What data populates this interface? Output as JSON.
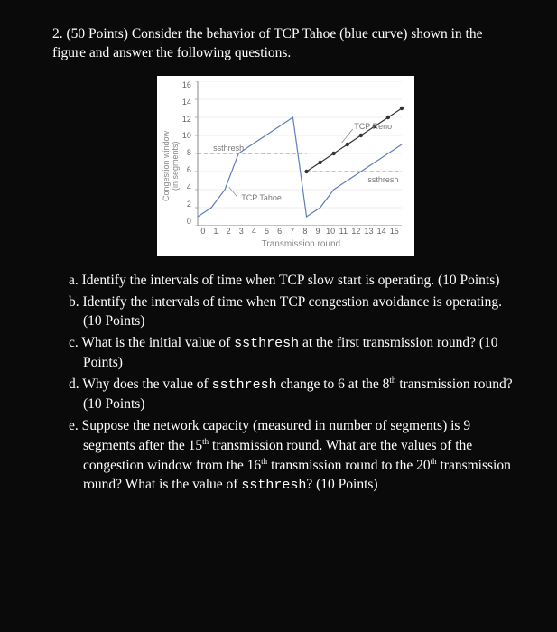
{
  "question": {
    "number": "2.",
    "points": "(50 Points)",
    "intro": "Consider the behavior of TCP Tahoe (blue curve) shown in the figure and answer the following questions."
  },
  "chart": {
    "type": "line",
    "background_color": "#ffffff",
    "grid_color": "#dddddd",
    "text_color": "#777777",
    "xlabel": "Transmission round",
    "ylabel_line1": "Congestion window",
    "ylabel_line2": "(in segments)",
    "yticks": [
      "16",
      "14",
      "12",
      "10",
      "8",
      "6",
      "4",
      "2",
      "0"
    ],
    "xticks": [
      "0",
      "1",
      "2",
      "3",
      "4",
      "5",
      "6",
      "7",
      "8",
      "9",
      "10",
      "11",
      "12",
      "13",
      "14",
      "15"
    ],
    "ylim": [
      0,
      16
    ],
    "xlim": [
      0,
      15
    ],
    "tahoe": {
      "label": "TCP Tahoe",
      "color": "#5b7fb8",
      "points_x": [
        0,
        1,
        2,
        3,
        4,
        5,
        6,
        7,
        8,
        9,
        10,
        11,
        12,
        13,
        14,
        15
      ],
      "points_y": [
        1,
        2,
        4,
        8,
        9,
        10,
        11,
        12,
        1,
        2,
        4,
        5,
        6,
        7,
        8,
        9
      ],
      "line_width": 1.2,
      "marker": "none"
    },
    "reno": {
      "label": "TCP Reno",
      "color": "#333333",
      "points_x": [
        8,
        9,
        10,
        11,
        12,
        13,
        14,
        15
      ],
      "points_y": [
        6,
        7,
        8,
        9,
        10,
        11,
        12,
        13
      ],
      "line_width": 1.2,
      "marker": "circle",
      "marker_size": 2.2
    },
    "ssthresh1": {
      "label": "ssthresh",
      "y": 8,
      "x_from": 0,
      "x_to": 8,
      "color": "#888888",
      "dash": "4,3"
    },
    "ssthresh2": {
      "label": "ssthresh",
      "y": 6,
      "x_from": 8,
      "x_to": 15,
      "color": "#888888",
      "dash": "4,3"
    },
    "label_fontsize": 9,
    "tick_fontsize": 9
  },
  "parts": {
    "a": {
      "letter": "a.",
      "text": "Identify the intervals of time when TCP slow start is operating. (10 Points)"
    },
    "b": {
      "letter": "b.",
      "text": "Identify the intervals of time when TCP congestion avoidance is operating. (10 Points)"
    },
    "c": {
      "letter": "c.",
      "pre": "What is the initial value of ",
      "code": "ssthresh",
      "post": " at the first transmission round? (10 Points)"
    },
    "d": {
      "letter": "d.",
      "pre": "Why does the value of ",
      "code": "ssthresh",
      "post1": " change to 6 at the 8",
      "sup": "th",
      "post2": " transmission round? (10 Points)"
    },
    "e": {
      "letter": "e.",
      "pre": "Suppose the network capacity (measured in number of segments) is 9 segments after the 15",
      "sup1": "th",
      "mid1": " transmission round. What are the values of the congestion window from the 16",
      "sup2": "th",
      "mid2": " transmission round to the 20",
      "sup3": "th",
      "mid3": " transmission round? What is the value of ",
      "code": "ssthresh",
      "post": "? (10 Points)"
    }
  }
}
